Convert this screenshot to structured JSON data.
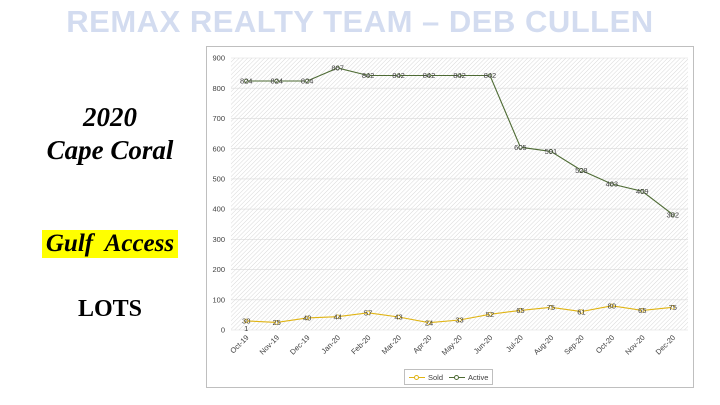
{
  "banner": "REMAX REALTY TEAM – DEB CULLEN",
  "left_panel": {
    "year": "2020",
    "city": "Cape Coral",
    "category": "Gulf  Access",
    "type": "LOTS"
  },
  "colors": {
    "banner": "#d3dcf0",
    "highlight": "#ffff00",
    "sold": "#e0b414",
    "active": "#4e6b34"
  },
  "chart_data": {
    "type": "line",
    "categories": [
      "Oct-19",
      "Nov-19",
      "Dec-19",
      "Jan-20",
      "Feb-20",
      "Mar-20",
      "Apr-20",
      "May-20",
      "Jun-20",
      "Jul-20",
      "Aug-20",
      "Sep-20",
      "Oct-20",
      "Nov-20",
      "Dec-20"
    ],
    "series": [
      {
        "name": "Sold",
        "color": "#e0b414",
        "values": [
          30,
          25,
          40,
          44,
          57,
          43,
          24,
          33,
          52,
          65,
          75,
          61,
          80,
          65,
          75
        ]
      },
      {
        "name": "Active",
        "color": "#4e6b34",
        "values": [
          824,
          824,
          824,
          867,
          842,
          842,
          842,
          842,
          842,
          605,
          591,
          528,
          483,
          459,
          382
        ]
      }
    ],
    "extra_labels": [
      {
        "series": "Sold",
        "index": 0,
        "text": "1"
      }
    ],
    "ylim": [
      0,
      900
    ],
    "yticks": [
      0,
      100,
      200,
      300,
      400,
      500,
      600,
      700,
      800,
      900
    ],
    "grid": true,
    "legend": "bottom",
    "title": "",
    "xlabel": "",
    "ylabel": ""
  }
}
